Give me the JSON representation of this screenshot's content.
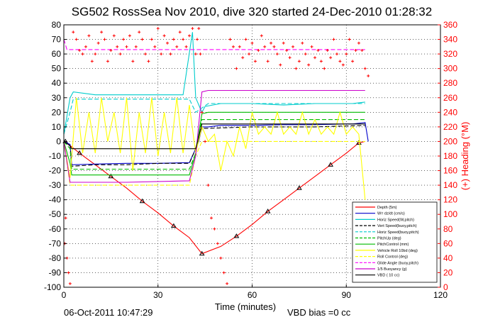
{
  "chart_data": {
    "type": "line",
    "title": "SG502 RossSea Nov 2010, dive 320 started 24-Dec-2010 01:28:32",
    "xlabel": "Time (minutes)",
    "ylabel_right": "(+) Heading (°M)",
    "footer_date": "06-Oct-2011 10:47:29",
    "footer_note": "VBD bias =0 cc",
    "xlim": [
      0,
      120
    ],
    "ylim": [
      -100,
      80
    ],
    "ylim_right": [
      0,
      360
    ],
    "xticks": [
      "0",
      "30",
      "60",
      "90",
      "120"
    ],
    "yticks": [
      "-100",
      "-90",
      "-80",
      "-70",
      "-60",
      "-50",
      "-40",
      "-30",
      "-20",
      "-10",
      "0",
      "10",
      "20",
      "30",
      "40",
      "50",
      "60",
      "70",
      "80"
    ],
    "yticks_right": [
      "0",
      "20",
      "40",
      "60",
      "80",
      "100",
      "120",
      "140",
      "160",
      "180",
      "200",
      "220",
      "240",
      "260",
      "280",
      "300",
      "320",
      "340",
      "360"
    ],
    "grid": true,
    "legend_position": "bottom-right",
    "series": [
      {
        "name": "Depth (5m)",
        "color": "#ff0000",
        "style": "solid",
        "x": [
          0.5,
          1,
          5,
          10,
          15,
          20,
          25,
          30,
          35,
          40,
          44,
          50,
          55,
          60,
          65,
          70,
          75,
          80,
          85,
          90,
          94,
          96
        ],
        "y": [
          0,
          -1,
          -8,
          -16,
          -24,
          -32,
          -41,
          -49,
          -58,
          -66,
          -77,
          -72,
          -65,
          -57,
          -48,
          -40,
          -32,
          -24,
          -16,
          -8,
          -1,
          0
        ]
      },
      {
        "name": "W= dz/dt (cm/s)",
        "color": "#0000cc",
        "style": "solid",
        "x": [
          0,
          2,
          2.5,
          10,
          20,
          30,
          40,
          42,
          43,
          44,
          46,
          50,
          60,
          70,
          80,
          90,
          92,
          96,
          97
        ],
        "y": [
          0,
          -2,
          -16,
          -15.5,
          -15,
          -15,
          -14.5,
          -5,
          0,
          10,
          10,
          11,
          11,
          11.5,
          11.5,
          12,
          12,
          13,
          0
        ]
      },
      {
        "name": "Horiz Speed(W,pitch)",
        "color": "#00cccc",
        "style": "solid",
        "x": [
          0,
          2,
          3,
          10,
          20,
          30,
          38,
          41,
          42,
          44,
          45,
          50,
          60,
          70,
          80,
          90,
          92,
          96
        ],
        "y": [
          5,
          30,
          34,
          32,
          32,
          32,
          32,
          75,
          30,
          20,
          24,
          26,
          26,
          25,
          26,
          26,
          26,
          27
        ]
      },
      {
        "name": "Vert Speed(buoy,pitch)",
        "color": "#000000",
        "style": "dashed",
        "x": [
          0,
          2,
          2.5,
          10,
          20,
          30,
          40,
          42,
          44,
          46,
          60,
          80,
          96
        ],
        "y": [
          0,
          -3,
          -17,
          -16,
          -16,
          -15,
          -15,
          -5,
          9,
          9,
          10,
          10,
          11
        ]
      },
      {
        "name": "Horiz Speed(buoy,pitch)",
        "color": "#00cccc",
        "style": "dashed",
        "x": [
          0,
          2,
          3,
          20,
          40,
          42,
          44,
          46,
          96
        ],
        "y": [
          5,
          20,
          29,
          29,
          29,
          20,
          23,
          26,
          26
        ]
      },
      {
        "name": "PitchUp (deg)",
        "color": "#00bb00",
        "style": "dashed",
        "x": [
          0,
          2,
          2.5,
          20,
          40,
          42,
          44,
          46,
          96
        ],
        "y": [
          0,
          -5,
          -19,
          -19,
          -19,
          -8,
          15,
          15,
          15
        ]
      },
      {
        "name": "PitchControl (mm)",
        "color": "#00bb00",
        "style": "solid",
        "x": [
          0,
          2,
          2.5,
          20,
          40,
          42,
          44,
          46,
          96
        ],
        "y": [
          0,
          -15,
          -23,
          -23,
          -23,
          -8,
          19,
          20,
          20
        ]
      },
      {
        "name": "Vehicle Roll 10bd (deg)",
        "color": "#ffff00",
        "style": "solid",
        "x": [
          0,
          2,
          4,
          6,
          8,
          10,
          12,
          14,
          16,
          18,
          20,
          22,
          24,
          26,
          28,
          30,
          32,
          34,
          36,
          38,
          40,
          42,
          44,
          46,
          48,
          50,
          52,
          54,
          56,
          58,
          60,
          62,
          64,
          66,
          68,
          70,
          72,
          74,
          76,
          78,
          80,
          82,
          84,
          86,
          88,
          90,
          92,
          94,
          96
        ],
        "y": [
          0,
          -25,
          30,
          -8,
          20,
          -8,
          30,
          0,
          20,
          -8,
          30,
          -20,
          20,
          -8,
          30,
          -10,
          20,
          -8,
          30,
          -8,
          25,
          -8,
          10,
          0,
          5,
          -20,
          0,
          -10,
          10,
          -5,
          20,
          5,
          10,
          5,
          20,
          5,
          10,
          5,
          20,
          5,
          15,
          5,
          10,
          5,
          20,
          5,
          10,
          5,
          -40
        ]
      },
      {
        "name": "Roll Control (deg)",
        "color": "#ffff00",
        "style": "dashed",
        "x": [
          0,
          2,
          40,
          42,
          44,
          96
        ],
        "y": [
          0,
          -30,
          -30,
          -10,
          0,
          0
        ]
      },
      {
        "name": "Glide Angle (buoy,pitch)",
        "color": "#ff00ff",
        "style": "dashed",
        "x": [
          0,
          1,
          2,
          40,
          42,
          44,
          46,
          96
        ],
        "y": [
          70,
          63,
          63,
          63,
          63,
          63,
          63,
          63
        ]
      },
      {
        "name": "1/5 Buoyancy (g)",
        "color": "#cc00cc",
        "style": "solid",
        "x": [
          0,
          2,
          2.5,
          20,
          40,
          42,
          44,
          46,
          96
        ],
        "y": [
          0,
          -28,
          -28,
          -28,
          -27,
          -10,
          34,
          35,
          35
        ]
      },
      {
        "name": "VBD ( 10 cc)",
        "color": "#000000",
        "style": "solid",
        "x": [
          0,
          2,
          2.5,
          20,
          40,
          42,
          44,
          46,
          96
        ],
        "y": [
          0,
          -3,
          -5,
          -5,
          -5,
          -5,
          12,
          12,
          12
        ]
      }
    ],
    "heading_series": {
      "name": "(+) Heading (°M)",
      "color": "#ff0000",
      "style": "plus-markers",
      "axis": "right",
      "x": [
        0.3,
        0.6,
        1,
        1.5,
        2,
        3,
        4,
        5,
        6,
        7,
        8,
        9,
        10,
        11,
        12,
        13,
        14,
        15,
        16,
        17,
        18,
        19,
        20,
        21,
        22,
        23,
        24,
        25,
        26,
        27,
        28,
        29,
        30,
        31,
        32,
        33,
        34,
        35,
        36,
        37,
        38,
        39,
        40,
        41,
        42,
        42.5,
        43,
        43.5,
        44,
        45,
        46,
        47,
        48,
        49,
        50,
        51,
        52,
        53,
        54,
        55,
        56,
        57,
        58,
        59,
        60,
        61,
        62,
        63,
        64,
        65,
        66,
        67,
        68,
        69,
        70,
        71,
        72,
        73,
        74,
        75,
        76,
        77,
        78,
        79,
        80,
        81,
        82,
        83,
        84,
        85,
        86,
        87,
        88,
        89,
        90,
        91,
        92,
        93,
        94,
        95,
        96,
        97
      ],
      "y": [
        60,
        95,
        40,
        20,
        5,
        350,
        340,
        325,
        320,
        330,
        345,
        310,
        320,
        335,
        350,
        340,
        310,
        325,
        345,
        330,
        320,
        340,
        330,
        345,
        310,
        330,
        350,
        340,
        320,
        310,
        340,
        330,
        355,
        320,
        345,
        335,
        320,
        340,
        330,
        350,
        340,
        330,
        345,
        355,
        320,
        340,
        355,
        320,
        240,
        200,
        140,
        95,
        80,
        60,
        40,
        20,
        5,
        340,
        330,
        300,
        330,
        315,
        340,
        320,
        335,
        310,
        325,
        345,
        330,
        310,
        335,
        330,
        320,
        305,
        335,
        325,
        315,
        330,
        300,
        310,
        335,
        320,
        305,
        330,
        315,
        325,
        310,
        300,
        325,
        315,
        340,
        320,
        310,
        305,
        320,
        340,
        310,
        325,
        335,
        325,
        300,
        290
      ]
    }
  }
}
